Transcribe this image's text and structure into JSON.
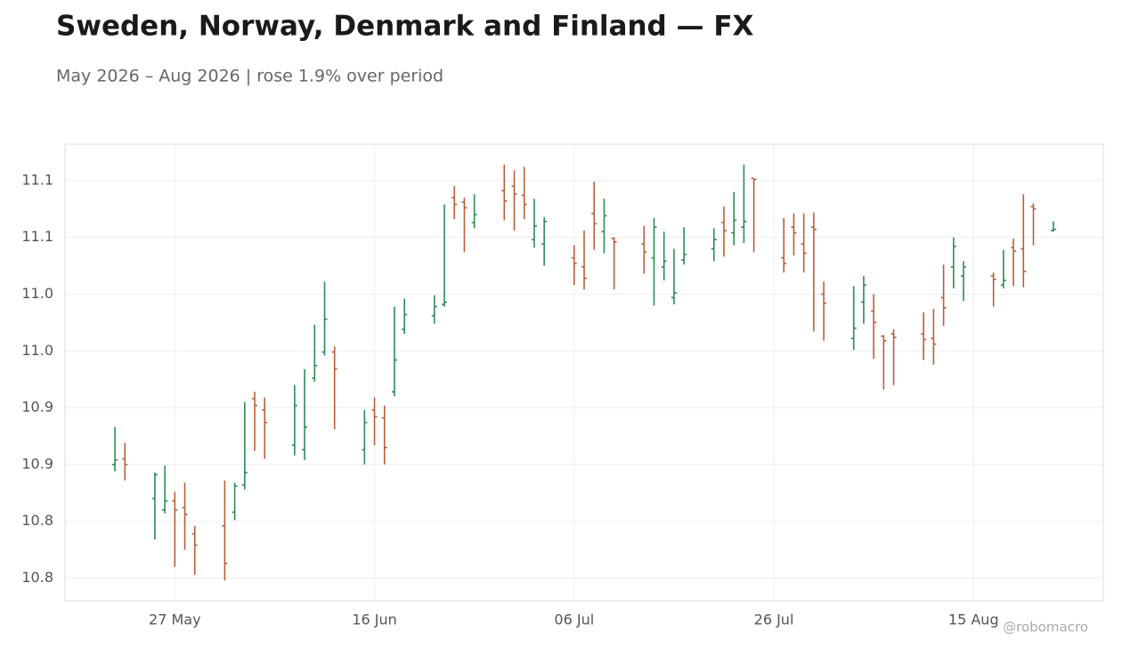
{
  "chart_data": {
    "type": "ohlc",
    "title": "Sweden, Norway, Denmark and Finland — FX",
    "subtitle": "May 2026 – Aug 2026 | rose 1.9% over period",
    "watermark": "@robomacro",
    "up_color": "#2e8b57",
    "down_color": "#b5603c",
    "grid": true,
    "x": [
      "2026-05-21",
      "2026-05-22",
      "2026-05-25",
      "2026-05-26",
      "2026-05-27",
      "2026-05-28",
      "2026-05-29",
      "2026-06-01",
      "2026-06-02",
      "2026-06-03",
      "2026-06-04",
      "2026-06-05",
      "2026-06-08",
      "2026-06-09",
      "2026-06-10",
      "2026-06-11",
      "2026-06-12",
      "2026-06-15",
      "2026-06-16",
      "2026-06-17",
      "2026-06-18",
      "2026-06-19",
      "2026-06-22",
      "2026-06-23",
      "2026-06-24",
      "2026-06-25",
      "2026-06-26",
      "2026-06-29",
      "2026-06-30",
      "2026-07-01",
      "2026-07-02",
      "2026-07-03",
      "2026-07-06",
      "2026-07-07",
      "2026-07-08",
      "2026-07-09",
      "2026-07-10",
      "2026-07-13",
      "2026-07-14",
      "2026-07-15",
      "2026-07-16",
      "2026-07-17",
      "2026-07-20",
      "2026-07-21",
      "2026-07-22",
      "2026-07-23",
      "2026-07-24",
      "2026-07-27",
      "2026-07-28",
      "2026-07-29",
      "2026-07-30",
      "2026-07-31",
      "2026-08-03",
      "2026-08-04",
      "2026-08-05",
      "2026-08-06",
      "2026-08-07",
      "2026-08-10",
      "2026-08-11",
      "2026-08-12",
      "2026-08-13",
      "2026-08-14",
      "2026-08-17",
      "2026-08-18",
      "2026-08-19",
      "2026-08-20",
      "2026-08-21",
      "2026-08-23"
    ],
    "open": [
      10.85,
      10.855,
      10.82,
      10.81,
      10.818,
      10.812,
      10.789,
      10.796,
      10.808,
      10.832,
      10.908,
      10.898,
      10.867,
      10.863,
      10.926,
      10.949,
      10.949,
      10.863,
      10.898,
      10.891,
      10.914,
      10.969,
      10.981,
      10.991,
      11.085,
      11.081,
      11.063,
      11.091,
      11.095,
      11.087,
      11.048,
      11.044,
      11.032,
      11.024,
      11.071,
      11.055,
      11.049,
      11.044,
      11.032,
      11.024,
      10.997,
      11.03,
      11.04,
      11.063,
      11.054,
      11.059,
      11.102,
      11.032,
      11.059,
      11.044,
      11.059,
      11.0,
      10.961,
      10.993,
      10.985,
      10.963,
      10.965,
      10.965,
      10.961,
      10.997,
      11.024,
      11.016,
      11.016,
      11.008,
      11.041,
      11.04,
      11.077,
      11.056
    ],
    "high": [
      10.883,
      10.869,
      10.843,
      10.849,
      10.826,
      10.834,
      10.796,
      10.836,
      10.834,
      10.905,
      10.914,
      10.909,
      10.92,
      10.934,
      10.973,
      11.011,
      10.954,
      10.898,
      10.909,
      10.902,
      10.989,
      10.996,
      10.999,
      11.079,
      11.095,
      11.085,
      11.088,
      11.114,
      11.109,
      11.112,
      11.084,
      11.068,
      11.043,
      11.056,
      11.099,
      11.084,
      11.05,
      11.06,
      11.067,
      11.055,
      11.04,
      11.059,
      11.058,
      11.077,
      11.09,
      11.114,
      11.102,
      11.067,
      11.071,
      11.071,
      11.072,
      11.011,
      11.007,
      11.016,
      11.0,
      10.964,
      10.969,
      10.984,
      10.987,
      11.026,
      11.05,
      11.029,
      11.019,
      11.039,
      11.049,
      11.088,
      11.08,
      11.064
    ],
    "low": [
      10.844,
      10.836,
      10.784,
      10.807,
      10.76,
      10.775,
      10.753,
      10.748,
      10.801,
      10.828,
      10.862,
      10.855,
      10.858,
      10.854,
      10.923,
      10.946,
      10.881,
      10.85,
      10.867,
      10.85,
      10.91,
      10.965,
      10.974,
      10.989,
      11.066,
      11.037,
      11.058,
      11.065,
      11.056,
      11.066,
      11.041,
      11.025,
      11.008,
      11.004,
      11.039,
      11.036,
      11.004,
      11.018,
      10.99,
      11.012,
      10.991,
      11.026,
      11.029,
      11.033,
      11.043,
      11.045,
      11.037,
      11.019,
      11.034,
      11.019,
      10.967,
      10.959,
      10.951,
      10.974,
      10.943,
      10.916,
      10.92,
      10.942,
      10.938,
      10.972,
      11.005,
      10.994,
      10.989,
      11.005,
      11.007,
      11.006,
      11.043,
      11.055
    ],
    "close": [
      10.854,
      10.85,
      10.841,
      10.818,
      10.81,
      10.806,
      10.779,
      10.763,
      10.831,
      10.843,
      10.902,
      10.887,
      10.902,
      10.883,
      10.937,
      10.978,
      10.934,
      10.887,
      10.892,
      10.865,
      10.942,
      10.982,
      10.989,
      10.993,
      11.079,
      11.076,
      11.07,
      11.082,
      11.088,
      11.079,
      11.06,
      11.064,
      11.027,
      11.014,
      11.062,
      11.069,
      11.046,
      11.037,
      11.059,
      11.029,
      11.001,
      11.035,
      11.048,
      11.056,
      11.065,
      11.064,
      11.101,
      11.027,
      11.054,
      11.036,
      11.057,
      10.992,
      10.97,
      11.008,
      10.975,
      10.959,
      10.962,
      10.96,
      10.956,
      10.988,
      11.042,
      11.024,
      11.013,
      11.012,
      11.038,
      11.02,
      11.075,
      11.057
    ],
    "xlim": [
      "2026-05-16",
      "2026-08-28"
    ],
    "xticks": [
      {
        "value": "2026-05-27",
        "label": "27 May"
      },
      {
        "value": "2026-06-16",
        "label": "16 Jun"
      },
      {
        "value": "2026-07-06",
        "label": "06 Jul"
      },
      {
        "value": "2026-07-26",
        "label": "26 Jul"
      },
      {
        "value": "2026-08-15",
        "label": "15 Aug"
      }
    ],
    "ylim": [
      10.73,
      11.132
    ],
    "yticks": [
      {
        "value": 10.75,
        "label": "10.8"
      },
      {
        "value": 10.8,
        "label": "10.8"
      },
      {
        "value": 10.85,
        "label": "10.9"
      },
      {
        "value": 10.9,
        "label": "10.9"
      },
      {
        "value": 10.95,
        "label": "11.0"
      },
      {
        "value": 11.0,
        "label": "11.0"
      },
      {
        "value": 11.05,
        "label": "11.1"
      },
      {
        "value": 11.1,
        "label": "11.1"
      }
    ]
  }
}
